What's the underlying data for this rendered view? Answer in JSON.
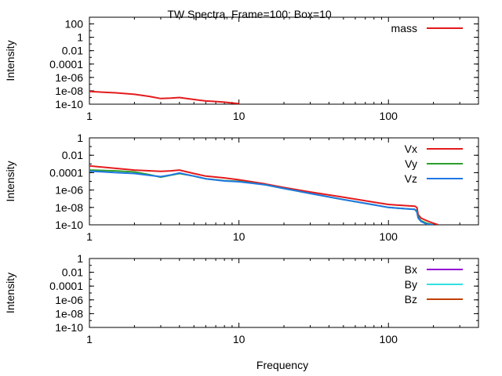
{
  "chart_data": {
    "title": "TW Spectra, Frame=100; Box=10",
    "xlabel": "Frequency",
    "panels": [
      {
        "type": "line",
        "ylabel": "Intensity",
        "xscale": "log",
        "yscale": "log",
        "xlim": [
          1,
          400
        ],
        "ylim": [
          1e-10,
          1000
        ],
        "xticks": [
          {
            "value": 1,
            "label": "1"
          },
          {
            "value": 10,
            "label": "10"
          },
          {
            "value": 100,
            "label": "100"
          }
        ],
        "yticks": [
          {
            "value": 100,
            "label": "100"
          },
          {
            "value": 1,
            "label": "1"
          },
          {
            "value": 0.01,
            "label": "0.01"
          },
          {
            "value": 0.0001,
            "label": "0.0001"
          },
          {
            "value": 1e-06,
            "label": "1e-06"
          },
          {
            "value": 1e-08,
            "label": "1e-08"
          },
          {
            "value": 1e-10,
            "label": "1e-10"
          }
        ],
        "legend_position": "top-right",
        "series": [
          {
            "name": "mass",
            "color": "#e41a1c",
            "x": [
              1,
              1.5,
              2,
              2.5,
              3,
              3.5,
              4,
              5,
              6,
              7,
              8,
              9,
              10
            ],
            "y": [
              8e-09,
              5e-09,
              3e-09,
              1.5e-09,
              7e-10,
              8e-10,
              1e-09,
              5e-10,
              3e-10,
              2.5e-10,
              2e-10,
              1.5e-10,
              1.2e-10
            ]
          }
        ]
      },
      {
        "type": "line",
        "ylabel": "Intensity",
        "xscale": "log",
        "yscale": "log",
        "xlim": [
          1,
          400
        ],
        "ylim": [
          1e-10,
          1
        ],
        "xticks": [
          {
            "value": 1,
            "label": "1"
          },
          {
            "value": 10,
            "label": "10"
          },
          {
            "value": 100,
            "label": "100"
          }
        ],
        "yticks": [
          {
            "value": 1,
            "label": "1"
          },
          {
            "value": 0.01,
            "label": "0.01"
          },
          {
            "value": 0.0001,
            "label": "0.0001"
          },
          {
            "value": 1e-06,
            "label": "1e-06"
          },
          {
            "value": 1e-08,
            "label": "1e-08"
          },
          {
            "value": 1e-10,
            "label": "1e-10"
          }
        ],
        "legend_position": "top-right",
        "series": [
          {
            "name": "Vx",
            "color": "#e41a1c",
            "x": [
              1,
              2,
              3,
              3.5,
              4,
              5,
              6,
              8,
              10,
              15,
              20,
              30,
              50,
              80,
              100,
              130,
              150,
              155,
              158,
              165,
              180,
              200,
              215
            ],
            "y": [
              0.0006,
              0.0002,
              0.00014,
              0.00016,
              0.0002,
              8e-05,
              4e-05,
              2.5e-05,
              1.5e-05,
              5e-06,
              2e-06,
              6e-07,
              1.5e-07,
              4e-08,
              2.2e-08,
              1.6e-08,
              1.4e-08,
              1e-08,
              1.5e-09,
              6e-10,
              3e-10,
              1.5e-10,
              1e-10
            ]
          },
          {
            "name": "Vy",
            "color": "#2ca02c",
            "x": [
              1,
              1.5,
              2,
              2.5,
              3,
              3.5,
              4,
              5,
              6,
              8,
              10,
              15,
              20,
              30,
              50,
              80,
              100,
              130,
              150,
              155,
              158,
              165,
              180,
              200
            ],
            "y": [
              0.0002,
              0.00016,
              0.00012,
              6e-05,
              3e-05,
              5e-05,
              8e-05,
              4e-05,
              2e-05,
              1.2e-05,
              1e-05,
              4e-06,
              1.5e-06,
              4e-07,
              8e-08,
              2e-08,
              1e-08,
              7e-09,
              6e-09,
              4e-09,
              8e-10,
              3e-10,
              1.5e-10,
              1e-10
            ]
          },
          {
            "name": "Vz",
            "color": "#1f77e4",
            "x": [
              1,
              1.5,
              2,
              2.5,
              3,
              3.5,
              4,
              5,
              6,
              8,
              10,
              15,
              20,
              30,
              50,
              80,
              100,
              130,
              150,
              155,
              158,
              165,
              180,
              200
            ],
            "y": [
              0.00015,
              0.0001,
              8e-05,
              5e-05,
              3.5e-05,
              5.5e-05,
              9e-05,
              4e-05,
              2e-05,
              1.1e-05,
              9e-06,
              4e-06,
              1.5e-06,
              4e-07,
              8e-08,
              2e-08,
              1e-08,
              7e-09,
              6e-09,
              3e-09,
              6e-10,
              2.5e-10,
              1.2e-10,
              1e-10
            ]
          }
        ]
      },
      {
        "type": "line",
        "ylabel": "Intensity",
        "xscale": "log",
        "yscale": "log",
        "xlim": [
          1,
          400
        ],
        "ylim": [
          1e-10,
          1
        ],
        "xticks": [
          {
            "value": 1,
            "label": "1"
          },
          {
            "value": 10,
            "label": "10"
          },
          {
            "value": 100,
            "label": "100"
          }
        ],
        "yticks": [
          {
            "value": 1,
            "label": "1"
          },
          {
            "value": 0.01,
            "label": "0.01"
          },
          {
            "value": 0.0001,
            "label": "0.0001"
          },
          {
            "value": 1e-06,
            "label": "1e-06"
          },
          {
            "value": 1e-08,
            "label": "1e-08"
          },
          {
            "value": 1e-10,
            "label": "1e-10"
          }
        ],
        "legend_position": "top-right",
        "series": [
          {
            "name": "Bx",
            "color": "#9400d3",
            "x": [],
            "y": []
          },
          {
            "name": "By",
            "color": "#33e0e0",
            "x": [],
            "y": []
          },
          {
            "name": "Bz",
            "color": "#c04000",
            "x": [],
            "y": []
          }
        ]
      }
    ]
  }
}
